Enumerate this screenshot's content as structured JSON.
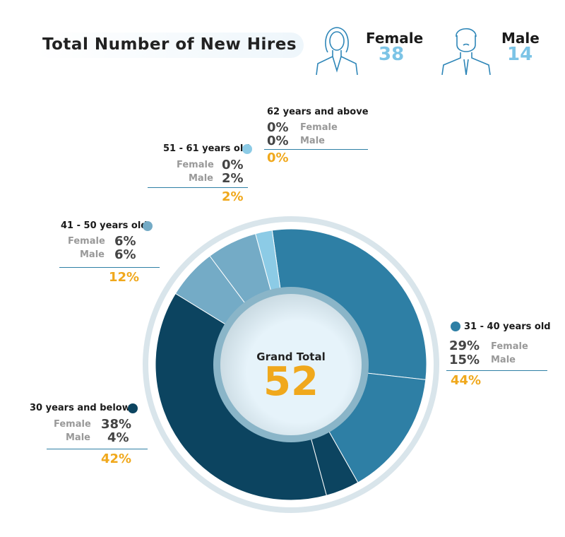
{
  "header": {
    "title": "Total Number of New Hires",
    "female_label": "Female",
    "female_count": "38",
    "male_label": "Male",
    "male_count": "14"
  },
  "chart_data": {
    "type": "pie",
    "title": "Total Number of New Hires",
    "center_label": "Grand Total",
    "center_value": "52",
    "groups": [
      {
        "name": "31 - 40 years old",
        "female": "29%",
        "male": "15%",
        "total": "44%",
        "female_value": 29,
        "male_value": 15,
        "color": "#2e7fa5"
      },
      {
        "name": "30 years and below",
        "female": "38%",
        "male": "4%",
        "total": "42%",
        "female_value": 38,
        "male_value": 4,
        "color": "#0c4460"
      },
      {
        "name": "41 - 50 years old",
        "female": "6%",
        "male": "6%",
        "total": "12%",
        "female_value": 6,
        "male_value": 6,
        "color": "#74abc6"
      },
      {
        "name": "51 - 61 years old",
        "female": "0%",
        "male": "2%",
        "total": "2%",
        "female_value": 0,
        "male_value": 2,
        "color": "#8ccbe6"
      },
      {
        "name": "62 years and above",
        "female": "0%",
        "male": "0%",
        "total": "0%",
        "female_value": 0,
        "male_value": 0,
        "color": "#8ccbe6"
      }
    ],
    "sub_labels": {
      "female": "Female",
      "male": "Male"
    }
  }
}
